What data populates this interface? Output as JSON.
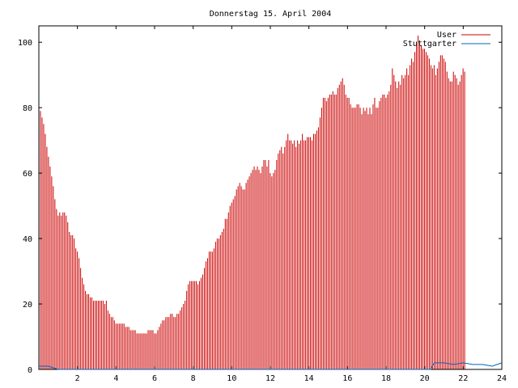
{
  "chart_data": {
    "type": "bar",
    "title": "Donnerstag 15. April 2004",
    "xlabel": "",
    "ylabel": "",
    "xlim": [
      0,
      24
    ],
    "ylim": [
      0,
      105
    ],
    "x_ticks": [
      2,
      4,
      6,
      8,
      10,
      12,
      14,
      16,
      18,
      20,
      22,
      24
    ],
    "y_ticks": [
      0,
      20,
      40,
      60,
      80,
      100
    ],
    "grid": false,
    "legend_position": "top-right",
    "step_hours": 0.0833,
    "series": [
      {
        "name": "User",
        "color": "#cc0000",
        "style": "impulses",
        "values": [
          80,
          79,
          77,
          75,
          72,
          68,
          65,
          62,
          59,
          56,
          52,
          49,
          47,
          48,
          47,
          48,
          48,
          47,
          45,
          42,
          41,
          41,
          40,
          37,
          36,
          34,
          31,
          28,
          26,
          24,
          23,
          23,
          22,
          22,
          21,
          21,
          21,
          21,
          21,
          21,
          21,
          20,
          21,
          18,
          17,
          16,
          16,
          15,
          14,
          14,
          14,
          14,
          14,
          14,
          13,
          13,
          13,
          12,
          12,
          12,
          12,
          11,
          11,
          11,
          11,
          11,
          11,
          11,
          12,
          12,
          12,
          12,
          11,
          11,
          12,
          13,
          14,
          15,
          15,
          16,
          16,
          16,
          17,
          17,
          16,
          16,
          17,
          17,
          18,
          19,
          20,
          21,
          24,
          26,
          27,
          27,
          27,
          27,
          27,
          26,
          27,
          28,
          29,
          31,
          33,
          34,
          36,
          36,
          36,
          37,
          39,
          40,
          40,
          41,
          42,
          43,
          46,
          46,
          48,
          50,
          51,
          52,
          53,
          55,
          56,
          57,
          56,
          55,
          55,
          57,
          58,
          59,
          60,
          61,
          62,
          61,
          62,
          61,
          60,
          62,
          64,
          64,
          62,
          64,
          60,
          59,
          60,
          61,
          64,
          66,
          67,
          68,
          66,
          68,
          70,
          72,
          70,
          70,
          69,
          70,
          68,
          70,
          69,
          70,
          72,
          70,
          70,
          71,
          71,
          71,
          70,
          72,
          72,
          73,
          74,
          77,
          80,
          83,
          83,
          82,
          83,
          84,
          84,
          85,
          84,
          84,
          86,
          87,
          88,
          89,
          87,
          84,
          83,
          83,
          81,
          80,
          80,
          80,
          81,
          81,
          80,
          78,
          80,
          79,
          80,
          78,
          80,
          78,
          81,
          83,
          80,
          80,
          82,
          83,
          84,
          84,
          83,
          84,
          85,
          87,
          92,
          90,
          88,
          86,
          88,
          87,
          90,
          89,
          90,
          92,
          90,
          93,
          95,
          94,
          97,
          100,
          102,
          100,
          99,
          98,
          98,
          97,
          96,
          95,
          93,
          92,
          93,
          90,
          92,
          94,
          96,
          96,
          95,
          94,
          91,
          89,
          88,
          88,
          91,
          90,
          89,
          87,
          88,
          90,
          92,
          91
        ]
      },
      {
        "name": "Stuttgarter",
        "color": "#0066bb",
        "style": "line",
        "points": [
          [
            0,
            1
          ],
          [
            0.5,
            1
          ],
          [
            1,
            0
          ],
          [
            2,
            0
          ],
          [
            3,
            0
          ],
          [
            4,
            0
          ],
          [
            6,
            0
          ],
          [
            8,
            0
          ],
          [
            10,
            0
          ],
          [
            12,
            0
          ],
          [
            14,
            0
          ],
          [
            16,
            0
          ],
          [
            18,
            0
          ],
          [
            20,
            0
          ],
          [
            20.3,
            0
          ],
          [
            20.5,
            2
          ],
          [
            21,
            2
          ],
          [
            21.5,
            1.5
          ],
          [
            22,
            2
          ],
          [
            22.5,
            1.5
          ],
          [
            23,
            1.5
          ],
          [
            23.5,
            1
          ],
          [
            24,
            2
          ]
        ]
      }
    ]
  }
}
